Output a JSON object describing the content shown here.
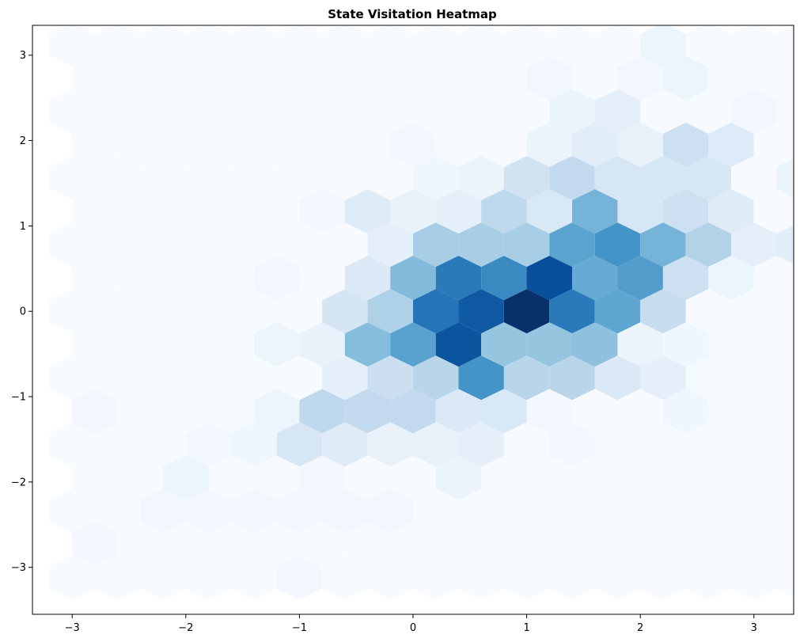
{
  "chart_data": {
    "type": "heatmap",
    "subtype": "hexbin",
    "title": "State Visitation Heatmap",
    "xlabel": "",
    "ylabel": "",
    "xlim": [
      -3.35,
      3.35
    ],
    "ylim": [
      -3.55,
      3.35
    ],
    "xticks": [
      -3,
      -2,
      -1,
      0,
      1,
      2,
      3
    ],
    "yticks": [
      -3,
      -2,
      -1,
      0,
      1,
      2,
      3
    ],
    "xtick_labels": [
      "−3",
      "−2",
      "−1",
      "0",
      "1",
      "2",
      "3"
    ],
    "ytick_labels": [
      "−3",
      "−2",
      "−1",
      "0",
      "1",
      "2",
      "3"
    ],
    "hex_spacing_x": 0.4,
    "hex_spacing_y": 0.39,
    "colormap": "Blues",
    "colormap_stops": [
      "#f7fbff",
      "#deebf7",
      "#c6dbef",
      "#9ecae1",
      "#6baed6",
      "#4292c6",
      "#2171b5",
      "#08519c",
      "#08306b"
    ],
    "max_count": 100,
    "grid": false,
    "legend": "none",
    "series": [
      {
        "name": "row_3.1",
        "y": 3.12,
        "x_start": -3.0,
        "counts": [
          1,
          1,
          1,
          1,
          1,
          1,
          1,
          1,
          1,
          1,
          1,
          1,
          1,
          6,
          1,
          1,
          1,
          1
        ]
      },
      {
        "name": "row_2.73",
        "y": 2.73,
        "x_start": -2.8,
        "counts": [
          1,
          1,
          1,
          1,
          1,
          1,
          1,
          1,
          1,
          1,
          4,
          1,
          4,
          6,
          1,
          1,
          1,
          1
        ]
      },
      {
        "name": "row_2.34",
        "y": 2.34,
        "x_start": -3.0,
        "counts": [
          1,
          1,
          1,
          1,
          1,
          1,
          1,
          1,
          1,
          1,
          1,
          7,
          10,
          1,
          1,
          4,
          1,
          1,
          1,
          1
        ]
      },
      {
        "name": "row_1.95",
        "y": 1.95,
        "x_start": -2.8,
        "counts": [
          1,
          1,
          1,
          1,
          1,
          1,
          1,
          3,
          1,
          1,
          7,
          12,
          8,
          22,
          14,
          1,
          1,
          8,
          1
        ]
      },
      {
        "name": "row_1.56",
        "y": 1.56,
        "x_start": -3.0,
        "counts": [
          1,
          1,
          1,
          1,
          1,
          1,
          1,
          1,
          5,
          7,
          20,
          27,
          17,
          17,
          17,
          1,
          7,
          1,
          1,
          1
        ]
      },
      {
        "name": "row_1.17",
        "y": 1.17,
        "x_start": -2.8,
        "counts": [
          1,
          1,
          1,
          1,
          1,
          3,
          13,
          8,
          10,
          28,
          16,
          48,
          17,
          22,
          13,
          1,
          1,
          1,
          1
        ]
      },
      {
        "name": "row_0.78",
        "y": 0.78,
        "x_start": -3.0,
        "counts": [
          1,
          1,
          1,
          1,
          1,
          1,
          1,
          10,
          35,
          35,
          35,
          55,
          62,
          48,
          32,
          10,
          12,
          1,
          1,
          1
        ]
      },
      {
        "name": "row_0.39",
        "y": 0.39,
        "x_start": -2.8,
        "counts": [
          1,
          1,
          1,
          1,
          4,
          1,
          15,
          45,
          72,
          66,
          88,
          52,
          58,
          22,
          6,
          1,
          1,
          1,
          1
        ]
      },
      {
        "name": "row_0",
        "y": 0.0,
        "x_start": -3.0,
        "counts": [
          1,
          1,
          1,
          1,
          1,
          1,
          18,
          33,
          74,
          84,
          100,
          72,
          54,
          25,
          1,
          1,
          1,
          1,
          1,
          1
        ]
      },
      {
        "name": "row_-0.39",
        "y": -0.39,
        "x_start": -2.8,
        "counts": [
          1,
          1,
          1,
          1,
          6,
          8,
          44,
          56,
          86,
          40,
          40,
          42,
          7,
          5,
          1,
          1,
          1,
          1,
          1
        ]
      },
      {
        "name": "row_-0.78",
        "y": -0.78,
        "x_start": -3.0,
        "counts": [
          1,
          1,
          1,
          1,
          1,
          1,
          10,
          23,
          30,
          62,
          30,
          30,
          15,
          10,
          2,
          1,
          1,
          1,
          1,
          1
        ]
      },
      {
        "name": "row_-1.17",
        "y": -1.17,
        "x_start": -2.8,
        "counts": [
          4,
          1,
          1,
          2,
          6,
          28,
          27,
          27,
          15,
          16,
          3,
          1,
          1,
          5,
          1,
          1,
          1,
          1,
          1
        ]
      },
      {
        "name": "row_-1.56",
        "y": -1.56,
        "x_start": -3.0,
        "counts": [
          1,
          1,
          2,
          3,
          5,
          17,
          13,
          8,
          9,
          10,
          1,
          3,
          1,
          1,
          1,
          1,
          1,
          1,
          1,
          1
        ]
      },
      {
        "name": "row_-1.95",
        "y": -1.95,
        "x_start": -2.8,
        "counts": [
          1,
          1,
          6,
          1,
          1,
          4,
          1,
          1,
          7,
          1,
          1,
          1,
          1,
          1,
          1,
          1,
          1,
          1,
          1
        ]
      },
      {
        "name": "row_-2.34",
        "y": -2.34,
        "x_start": -3.0,
        "counts": [
          1,
          1,
          4,
          4,
          4,
          3,
          4,
          4,
          1,
          1,
          1,
          1,
          1,
          1,
          1,
          1,
          1,
          1,
          1,
          1
        ]
      },
      {
        "name": "row_-2.73",
        "y": -2.73,
        "x_start": -2.8,
        "counts": [
          3,
          1,
          1,
          1,
          1,
          1,
          1,
          1,
          1,
          1,
          1,
          1,
          1,
          1,
          1,
          1,
          1,
          1,
          1
        ]
      },
      {
        "name": "row_-3.12",
        "y": -3.12,
        "x_start": -3.0,
        "counts": [
          1,
          1,
          1,
          1,
          1,
          3,
          1,
          1,
          1,
          1,
          1,
          1,
          1,
          1,
          1,
          1,
          1,
          1,
          1,
          1
        ]
      }
    ]
  }
}
